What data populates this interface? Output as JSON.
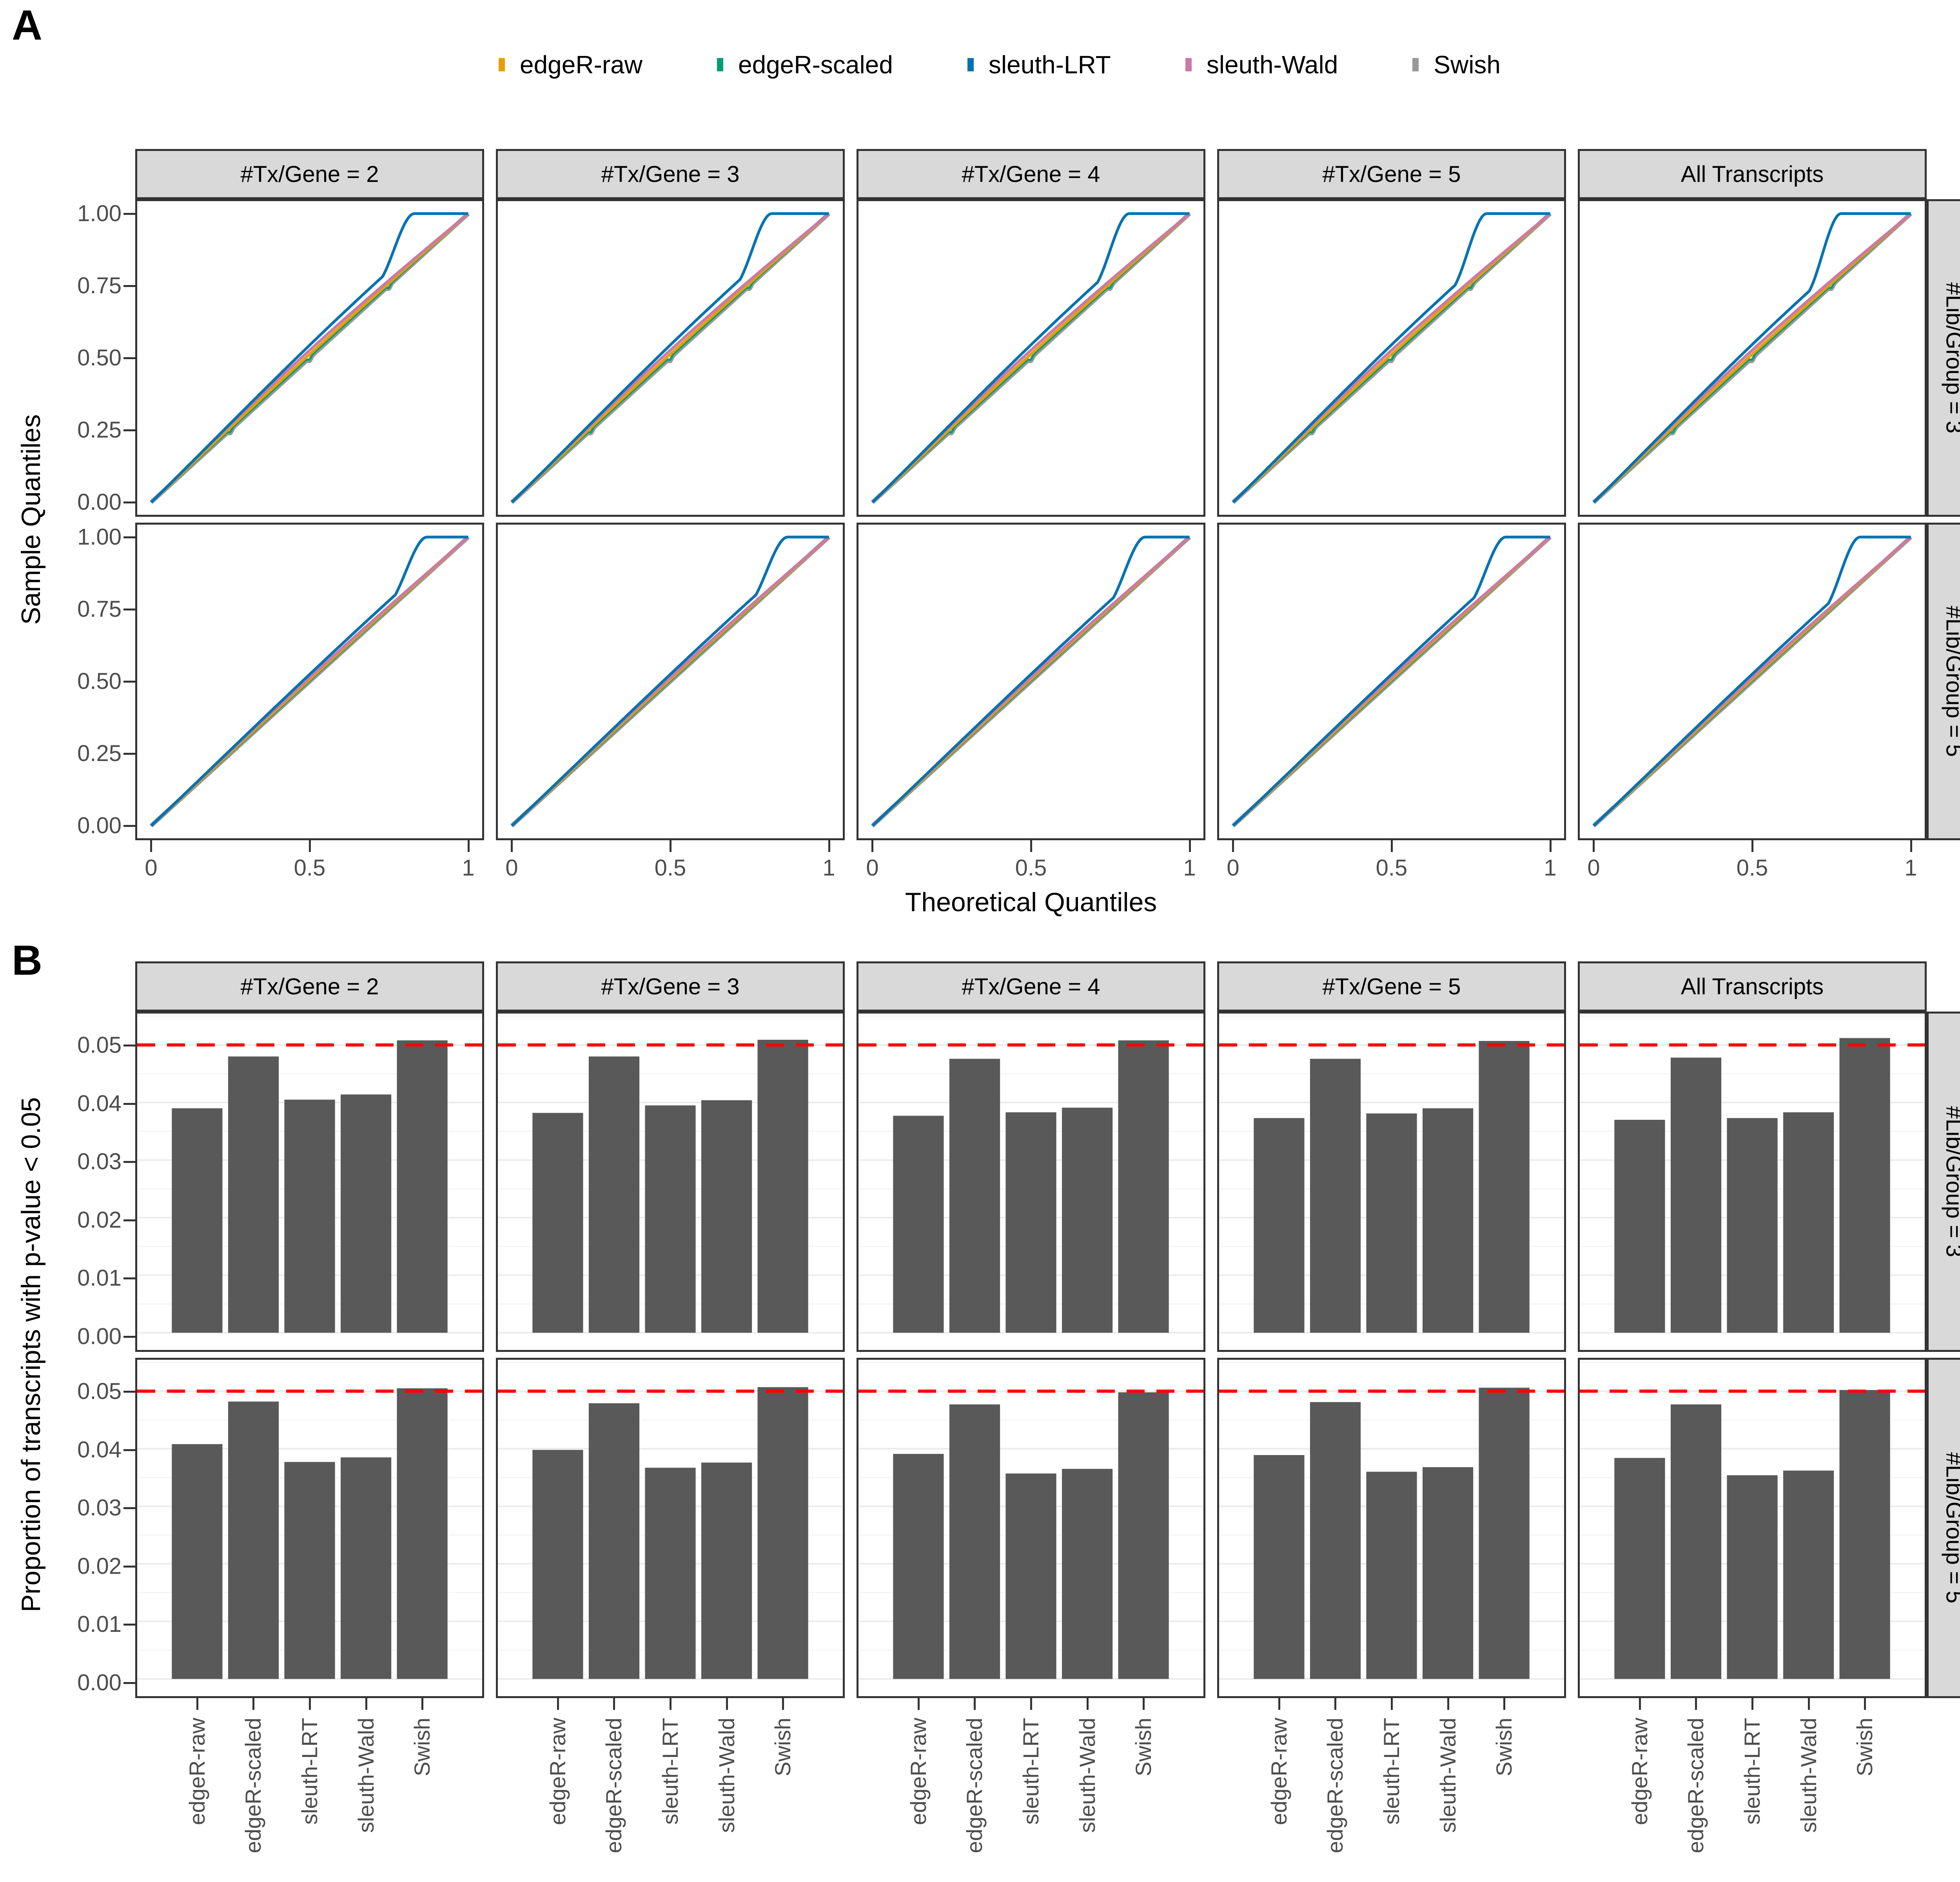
{
  "figure": {
    "panel_a_label": "A",
    "panel_b_label": "B"
  },
  "legend": {
    "items": [
      {
        "label": "edgeR-raw",
        "color": "#E69F00"
      },
      {
        "label": "edgeR-scaled",
        "color": "#009E73"
      },
      {
        "label": "sleuth-LRT",
        "color": "#0072B2"
      },
      {
        "label": "sleuth-Wald",
        "color": "#CC79A7"
      },
      {
        "label": "Swish",
        "color": "#999999"
      }
    ]
  },
  "facets": {
    "columns": [
      "#Tx/Gene = 2",
      "#Tx/Gene = 3",
      "#Tx/Gene = 4",
      "#Tx/Gene = 5",
      "All Transcripts"
    ],
    "rows": [
      "#Lib/Group = 3",
      "#Lib/Group = 5"
    ]
  },
  "colors": {
    "bar": "#595959",
    "reference_line": "#FF0000",
    "strip_bg": "#D9D9D9",
    "panel_border": "#333333",
    "tick_text": "#4D4D4D",
    "grid_major": "#EBEBEB",
    "grid_minor": "#F5F5F5"
  },
  "chart_data": [
    {
      "id": "qq_pvalues",
      "type": "line",
      "title": "",
      "xlabel": "Theoretical Quantiles",
      "ylabel": "Sample Quantiles",
      "xlim": [
        0,
        1
      ],
      "ylim": [
        0,
        1
      ],
      "x_tick_values": [
        0,
        0.5,
        1
      ],
      "x_tick_labels": [
        "0",
        "0.5",
        "1"
      ],
      "y_tick_values": [
        0,
        0.25,
        0.5,
        0.75,
        1
      ],
      "y_tick_labels": [
        "0.00",
        "0.25",
        "0.50",
        "0.75",
        "1.00"
      ],
      "col_facets": [
        "#Tx/Gene = 2",
        "#Tx/Gene = 3",
        "#Tx/Gene = 4",
        "#Tx/Gene = 5",
        "All Transcripts"
      ],
      "row_facets": [
        "#Lib/Group = 3",
        "#Lib/Group = 5"
      ],
      "grid": false,
      "legend_position": "top",
      "description": "QQ plots of observed vs theoretical p-value quantiles. All methods lie close to the y=x diagonal; sleuth-LRT bows above the diagonal and jumps to 1.0 before x=1. Deviations are larger for #Lib/Group = 3 than #Lib/Group = 5.",
      "series": [
        {
          "name": "Swish",
          "color": "#999999",
          "line_width": 11,
          "mid_deviation": [
            0.0,
            0.0
          ],
          "notch_x": [
            0.25,
            0.5,
            0.75
          ],
          "notch_depth": [
            0.01,
            0.0
          ]
        },
        {
          "name": "edgeR-scaled",
          "color": "#009E73",
          "line_width": 5,
          "mid_deviation": [
            0.004,
            0.002
          ],
          "notch_x": [
            0.25,
            0.5,
            0.75
          ],
          "notch_depth": [
            0.01,
            0.0
          ]
        },
        {
          "name": "edgeR-raw",
          "color": "#E69F00",
          "line_width": 7,
          "mid_deviation": [
            0.013,
            0.007
          ]
        },
        {
          "name": "sleuth-Wald",
          "color": "#CC79A7",
          "line_width": 7,
          "mid_deviation": [
            0.027,
            0.014
          ]
        },
        {
          "name": "sleuth-LRT",
          "color": "#0072B2",
          "line_width": 7,
          "mid_deviation": [
            0.052,
            0.03
          ],
          "jump_to_one_x": [
            [
              0.83,
              0.82,
              0.81,
              0.8,
              0.78
            ],
            [
              0.87,
              0.87,
              0.86,
              0.86,
              0.84
            ]
          ]
        }
      ]
    },
    {
      "id": "proportion_significant",
      "type": "bar",
      "title": "",
      "xlabel": "",
      "ylabel": "Proportion of transcripts with p-value < 0.05",
      "ylim": [
        0,
        0.0558
      ],
      "y_tick_values": [
        0,
        0.01,
        0.02,
        0.03,
        0.04,
        0.05
      ],
      "y_tick_labels": [
        "0.00",
        "0.01",
        "0.02",
        "0.03",
        "0.04",
        "0.05"
      ],
      "categories": [
        "edgeR-raw",
        "edgeR-scaled",
        "sleuth-LRT",
        "sleuth-Wald",
        "Swish"
      ],
      "col_facets": [
        "#Tx/Gene = 2",
        "#Tx/Gene = 3",
        "#Tx/Gene = 4",
        "#Tx/Gene = 5",
        "All Transcripts"
      ],
      "row_facets": [
        "#Lib/Group = 3",
        "#Lib/Group = 5"
      ],
      "bar_color": "#595959",
      "reference_line": {
        "value": 0.05,
        "color": "#FF0000",
        "linetype": "dashed"
      },
      "values": {
        "#Lib/Group = 3": {
          "#Tx/Gene = 2": [
            0.039,
            0.048,
            0.0405,
            0.0414,
            0.0508
          ],
          "#Tx/Gene = 3": [
            0.0382,
            0.048,
            0.0395,
            0.0404,
            0.0509
          ],
          "#Tx/Gene = 4": [
            0.0377,
            0.0476,
            0.0383,
            0.0391,
            0.0508
          ],
          "#Tx/Gene = 5": [
            0.0373,
            0.0476,
            0.0381,
            0.039,
            0.0507
          ],
          "All Transcripts": [
            0.037,
            0.0478,
            0.0373,
            0.0383,
            0.0512
          ]
        },
        "#Lib/Group = 5": {
          "#Tx/Gene = 2": [
            0.0408,
            0.0482,
            0.0377,
            0.0385,
            0.0505
          ],
          "#Tx/Gene = 3": [
            0.0398,
            0.0479,
            0.0367,
            0.0376,
            0.0507
          ],
          "#Tx/Gene = 4": [
            0.0391,
            0.0477,
            0.0357,
            0.0365,
            0.0498
          ],
          "#Tx/Gene = 5": [
            0.0389,
            0.0481,
            0.036,
            0.0368,
            0.0506
          ],
          "All Transcripts": [
            0.0384,
            0.0477,
            0.0354,
            0.0362,
            0.0502
          ]
        }
      }
    }
  ]
}
